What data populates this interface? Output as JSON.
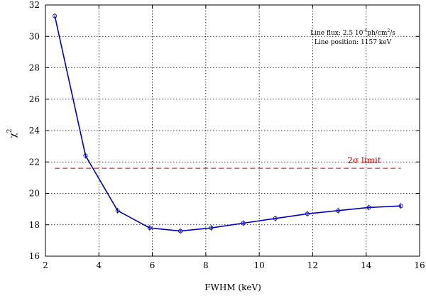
{
  "chart_data": {
    "type": "line",
    "xlabel": "FWHM (keV)",
    "ylabel": "χ",
    "ylabel_sup": "2",
    "xlim": [
      2,
      16
    ],
    "ylim": [
      16,
      32
    ],
    "xticks": [
      2,
      4,
      6,
      8,
      10,
      12,
      14,
      16
    ],
    "yticks": [
      16,
      18,
      20,
      22,
      24,
      26,
      28,
      30,
      32
    ],
    "grid": true,
    "series": [
      {
        "color": "#0000c0",
        "x": [
          2.35,
          3.5,
          4.7,
          5.9,
          7.05,
          8.2,
          9.4,
          10.6,
          11.8,
          12.95,
          14.1,
          15.3
        ],
        "y": [
          31.3,
          22.4,
          18.9,
          17.8,
          17.6,
          17.8,
          18.1,
          18.4,
          18.7,
          18.9,
          19.1,
          19.2
        ]
      }
    ],
    "reference_line": {
      "y": 21.6,
      "x_range": [
        2.35,
        15.3
      ],
      "color": "#e00000",
      "label": "2σ limit"
    },
    "annotations": [
      {
        "text_parts": [
          "Line flux: 2.5 10",
          "-4",
          "ph/cm",
          "2",
          "/s"
        ]
      },
      {
        "text": "Line position: 1157 keV"
      }
    ]
  }
}
